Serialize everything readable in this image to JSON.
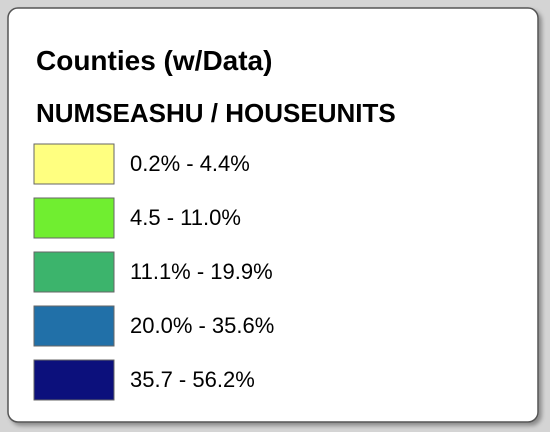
{
  "legend": {
    "title": "Counties (w/Data)",
    "subtitle": "NUMSEASHU / HOUSEUNITS",
    "items": [
      {
        "label": "0.2% - 4.4%",
        "color": "#ffff80"
      },
      {
        "label": "4.5 - 11.0%",
        "color": "#70ee30"
      },
      {
        "label": "11.1% - 19.9%",
        "color": "#3cb46c"
      },
      {
        "label": "20.0% - 35.6%",
        "color": "#2170a8"
      },
      {
        "label": "35.7 - 56.2%",
        "color": "#0c107c"
      }
    ]
  }
}
